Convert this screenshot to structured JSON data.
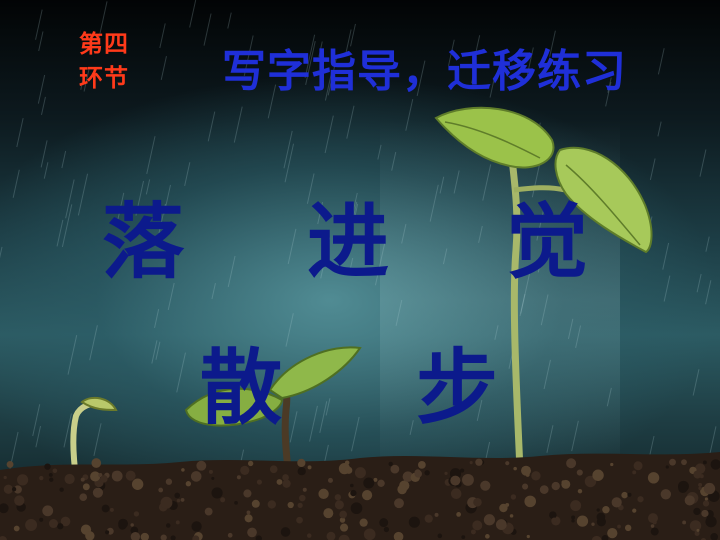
{
  "section_label": {
    "line1": "第四",
    "line2": "环节"
  },
  "title": "写字指导，迁移练习",
  "practice_characters": [
    "落",
    "进",
    "觉",
    "散",
    "步"
  ],
  "colors": {
    "section_label": "#ff3a1a",
    "title": "#1f2fd8",
    "characters": "#0c1a8c"
  }
}
